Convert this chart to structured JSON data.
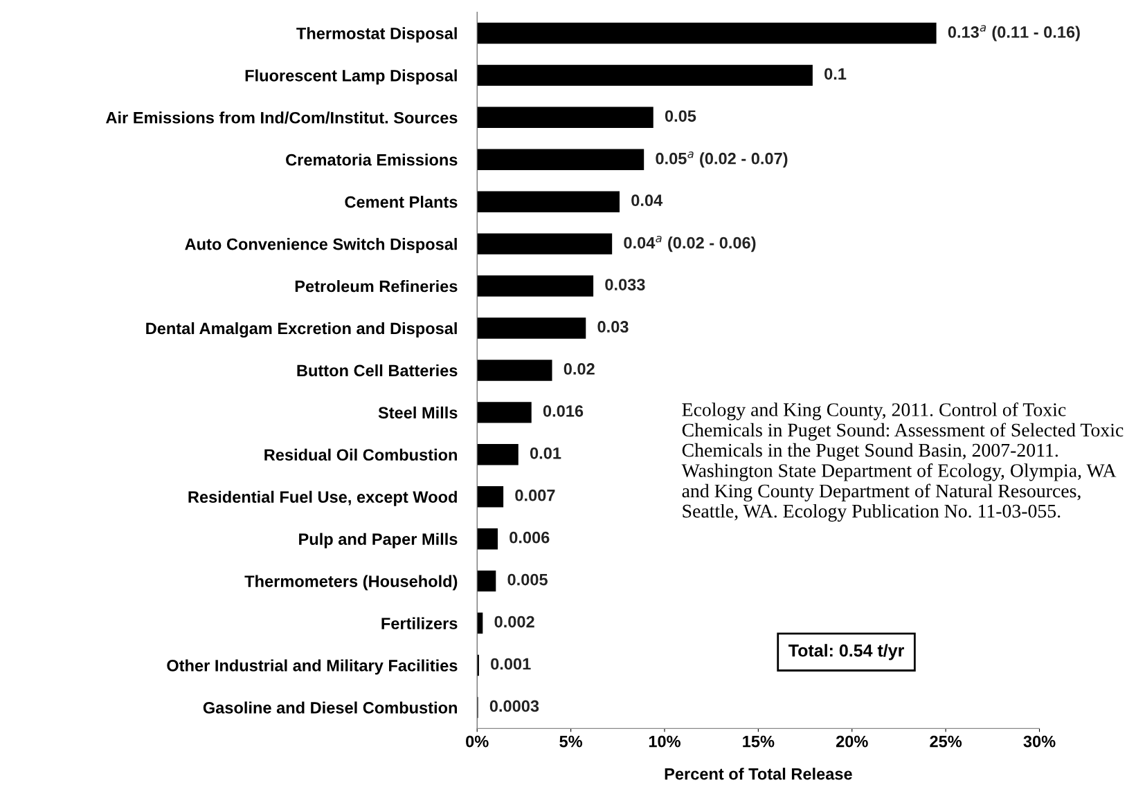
{
  "chart_data": {
    "type": "bar",
    "orientation": "horizontal",
    "xlabel": "Percent of Total Release",
    "categories": [
      "Thermostat Disposal",
      "Fluorescent Lamp Disposal",
      "Air Emissions from Ind/Com/Institut. Sources",
      "Crematoria Emissions",
      "Cement Plants",
      "Auto Convenience Switch Disposal",
      "Petroleum Refineries",
      "Dental Amalgam Excretion and Disposal",
      "Button Cell Batteries",
      "Steel Mills",
      "Residual Oil Combustion",
      "Residential Fuel Use, except Wood",
      "Pulp and Paper Mills",
      "Thermometers (Household)",
      "Fertilizers",
      "Other Industrial and Military Facilities",
      "Gasoline and Diesel Combustion"
    ],
    "values": [
      24.5,
      17.9,
      9.4,
      8.9,
      7.6,
      7.2,
      6.2,
      5.8,
      4.0,
      2.9,
      2.2,
      1.4,
      1.1,
      1.0,
      0.3,
      0.1,
      0.05
    ],
    "color": "#000000",
    "xlim": [
      0,
      30
    ],
    "xticks": [
      {
        "value": 0,
        "label": "0%"
      },
      {
        "value": 5,
        "label": "5%"
      },
      {
        "value": 10,
        "label": "10%"
      },
      {
        "value": 15,
        "label": "15%"
      },
      {
        "value": 20,
        "label": "20%"
      },
      {
        "value": 25,
        "label": "25%"
      },
      {
        "value": 30,
        "label": "30%"
      }
    ],
    "grid": false,
    "legend": false,
    "annotations": [
      {
        "text": "0.13$^{a}$ (0.11 - 0.16)",
        "x": 24.5,
        "y": "Thermostat Disposal"
      },
      {
        "text": "0.1",
        "x": 17.9,
        "y": "Fluorescent Lamp Disposal"
      },
      {
        "text": "0.05",
        "x": 9.4,
        "y": "Air Emissions from Ind/Com/Institut. Sources"
      },
      {
        "text": "0.05$^{a}$ (0.02 - 0.07)",
        "x": 8.9,
        "y": "Crematoria Emissions"
      },
      {
        "text": "0.04",
        "x": 7.6,
        "y": "Cement Plants"
      },
      {
        "text": "0.04$^{a}$ (0.02 - 0.06)",
        "x": 7.2,
        "y": "Auto Convenience Switch Disposal"
      },
      {
        "text": "0.033",
        "x": 6.2,
        "y": "Petroleum Refineries"
      },
      {
        "text": "0.03",
        "x": 5.8,
        "y": "Dental Amalgam Excretion and Disposal"
      },
      {
        "text": "0.02",
        "x": 4.0,
        "y": "Button Cell Batteries"
      },
      {
        "text": "0.016",
        "x": 2.9,
        "y": "Steel Mills"
      },
      {
        "text": "0.01",
        "x": 2.2,
        "y": "Residual Oil Combustion"
      },
      {
        "text": "0.007",
        "x": 1.4,
        "y": "Residential Fuel Use, except Wood"
      },
      {
        "text": "0.006",
        "x": 1.1,
        "y": "Pulp and Paper Mills"
      },
      {
        "text": "0.005",
        "x": 1.0,
        "y": "Thermometers (Household)"
      },
      {
        "text": "0.002",
        "x": 0.3,
        "y": "Fertilizers"
      },
      {
        "text": "0.001",
        "x": 0.1,
        "y": "Other Industrial and Military Facilities"
      },
      {
        "text": "0.0003",
        "x": 0.05,
        "y": "Gasoline and Diesel Combustion"
      },
      "Ecology and King County, 2011. Control of Toxic Chemicals in Puget Sound: Assessment of Selected Toxic Chemicals in the Puget Sound Basin, 2007-2011. Washington State Department of Ecology, Olympia, WA and King County Department of Natural Resources, Seattle, WA. Ecology Publication No. 11-03-055.",
      "Total: 0.54 t/yr"
    ]
  }
}
